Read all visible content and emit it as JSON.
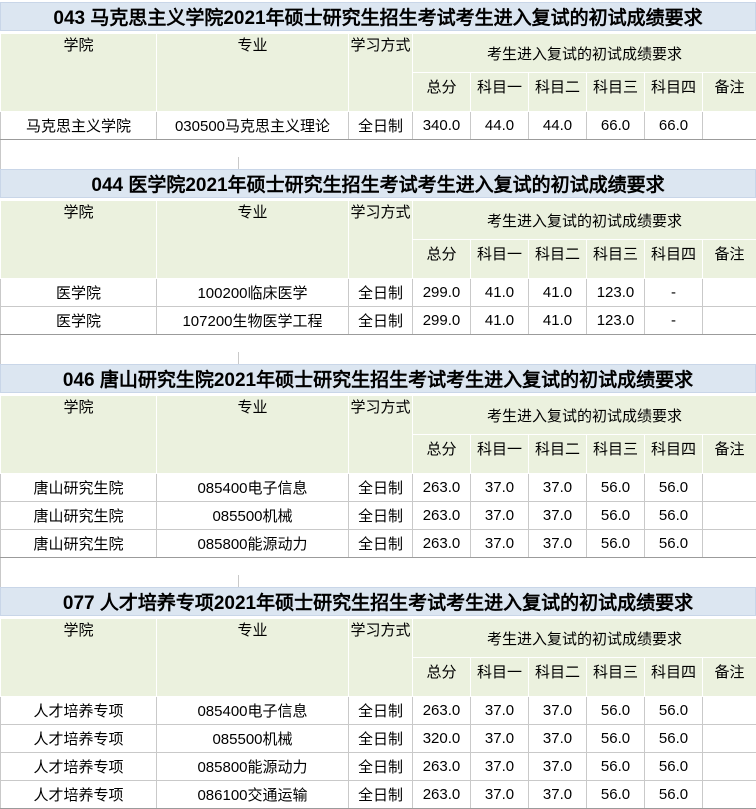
{
  "colors": {
    "title_bg": "#dce6f1",
    "header_bg": "#ebf1de",
    "header_divider": "#ffffff",
    "data_border": "#c9c9c9",
    "header_bottom_border": "#6e6e6e"
  },
  "columns": {
    "college": "学院",
    "major": "专业",
    "mode": "学习方式",
    "group": "考生进入复试的初试成绩要求",
    "total": "总分",
    "s1": "科目一",
    "s2": "科目二",
    "s3": "科目三",
    "s4": "科目四",
    "note": "备注"
  },
  "sections": [
    {
      "title": "043 马克思主义学院2021年硕士研究生招生考试考生进入复试的初试成绩要求",
      "rows": [
        {
          "college": "马克思主义学院",
          "major": "030500马克思主义理论",
          "mode": "全日制",
          "total": "340.0",
          "s1": "44.0",
          "s2": "44.0",
          "s3": "66.0",
          "s4": "66.0",
          "note": ""
        }
      ]
    },
    {
      "title": "044 医学院2021年硕士研究生招生考试考生进入复试的初试成绩要求",
      "rows": [
        {
          "college": "医学院",
          "major": "100200临床医学",
          "mode": "全日制",
          "total": "299.0",
          "s1": "41.0",
          "s2": "41.0",
          "s3": "123.0",
          "s4": "-",
          "note": ""
        },
        {
          "college": "医学院",
          "major": "107200生物医学工程",
          "mode": "全日制",
          "total": "299.0",
          "s1": "41.0",
          "s2": "41.0",
          "s3": "123.0",
          "s4": "-",
          "note": ""
        }
      ]
    },
    {
      "title": "046 唐山研究生院2021年硕士研究生招生考试考生进入复试的初试成绩要求",
      "rows": [
        {
          "college": "唐山研究生院",
          "major": "085400电子信息",
          "mode": "全日制",
          "total": "263.0",
          "s1": "37.0",
          "s2": "37.0",
          "s3": "56.0",
          "s4": "56.0",
          "note": ""
        },
        {
          "college": "唐山研究生院",
          "major": "085500机械",
          "mode": "全日制",
          "total": "263.0",
          "s1": "37.0",
          "s2": "37.0",
          "s3": "56.0",
          "s4": "56.0",
          "note": ""
        },
        {
          "college": "唐山研究生院",
          "major": "085800能源动力",
          "mode": "全日制",
          "total": "263.0",
          "s1": "37.0",
          "s2": "37.0",
          "s3": "56.0",
          "s4": "56.0",
          "note": ""
        }
      ]
    },
    {
      "title": "077 人才培养专项2021年硕士研究生招生考试考生进入复试的初试成绩要求",
      "rows": [
        {
          "college": "人才培养专项",
          "major": "085400电子信息",
          "mode": "全日制",
          "total": "263.0",
          "s1": "37.0",
          "s2": "37.0",
          "s3": "56.0",
          "s4": "56.0",
          "note": ""
        },
        {
          "college": "人才培养专项",
          "major": "085500机械",
          "mode": "全日制",
          "total": "320.0",
          "s1": "37.0",
          "s2": "37.0",
          "s3": "56.0",
          "s4": "56.0",
          "note": ""
        },
        {
          "college": "人才培养专项",
          "major": "085800能源动力",
          "mode": "全日制",
          "total": "263.0",
          "s1": "37.0",
          "s2": "37.0",
          "s3": "56.0",
          "s4": "56.0",
          "note": ""
        },
        {
          "college": "人才培养专项",
          "major": "086100交通运输",
          "mode": "全日制",
          "total": "263.0",
          "s1": "37.0",
          "s2": "37.0",
          "s3": "56.0",
          "s4": "56.0",
          "note": ""
        }
      ]
    }
  ]
}
